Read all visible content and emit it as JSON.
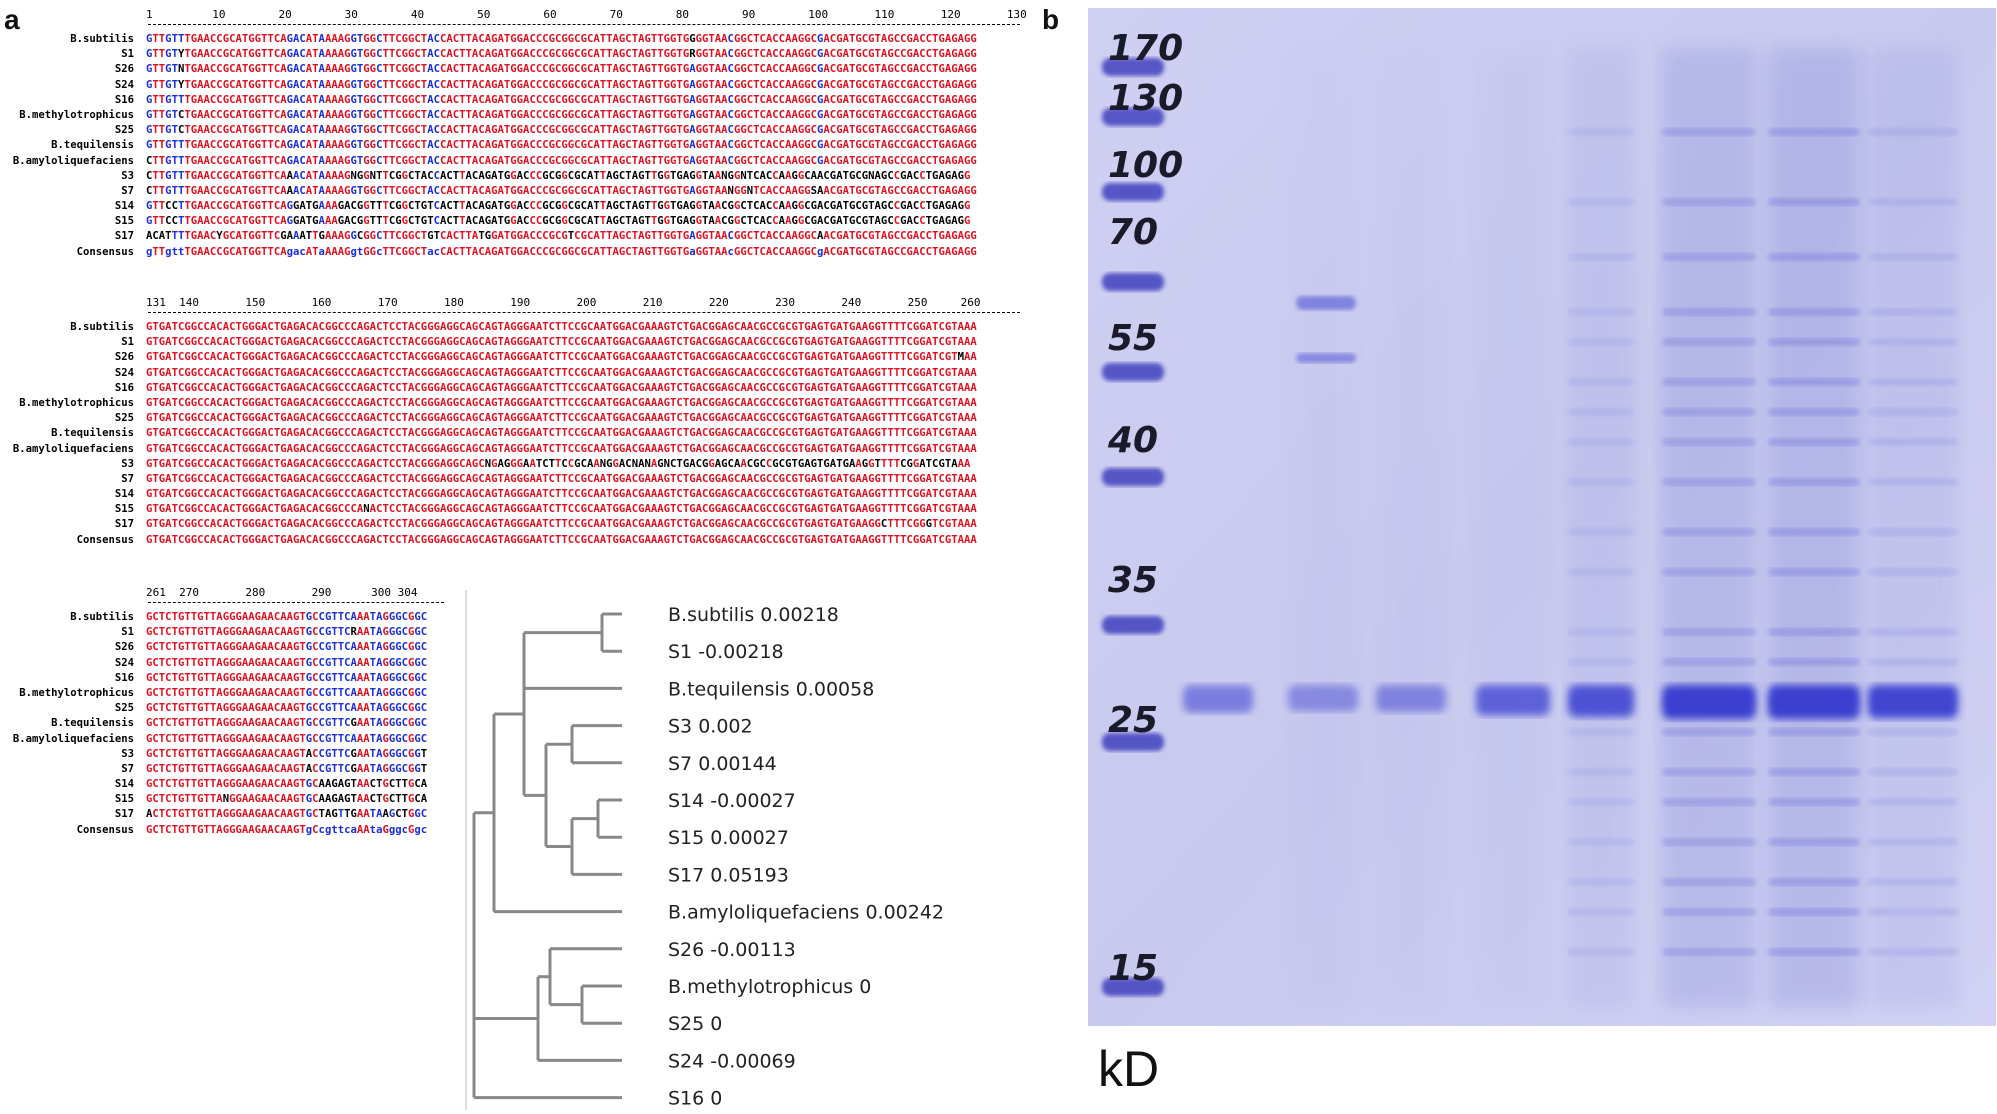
{
  "panel_a": {
    "letter": "a",
    "blocks": [
      {
        "ruler": "1         10        20        30        40        50        60        70        80        90        100       110       120       130",
        "names": [
          "B.subtilis",
          "S1",
          "S26",
          "S24",
          "S16",
          "B.methylotrophicus",
          "S25",
          "B.tequilensis",
          "B.amyloliquefaciens",
          "S3",
          "S7",
          "S14",
          "S15",
          "S17",
          "Consensus"
        ],
        "rows": [
          "GTTGTTTGAACCGCATGGTTCAGACATAAAAGGTGGCTTCGGCTACCACTTACAGATGGACCCGCGGCGCATTAGCTAGTTGGTGGGGTAACGGCTCACCAAGGCGACGATGCGTAGCCGACCTGAGAGG",
          "GTTGTYTGAACCGCATGGTTCAGACATAAAAGGTGGCTTCGGCTACCACTTACAGATGGACCCGCGGCGCATTAGCTAGTTGGTGRGGTAACGGCTCACCAAGGCGACGATGCGTAGCCGACCTGAGAGG",
          "GTTGTNTGAACCGCATGGTTCAGACATAAAAGGTGGCTTCGGCTACCACTTACAGATGGACCCGCGGCGCATTAGCTAGTTGGTGAGGTAACGGCTCACCAAGGCGACGATGCGTAGCCGACCTGAGAGG",
          "GTTGTYTGAACCGCATGGTTCAGACATAAAAGGTGGCTTCGGCTACCACTTACAGATGGACCCGCGGCGCATTAGCTAGTTGGTGAGGTAACGGCTCACCAAGGCGACGATGCGTAGCCGACCTGAGAGG",
          "GTTGTTTGAACCGCATGGTTCAGACATAAAAGGTGGCTTCGGCTACCACTTACAGATGGACCCGCGGCGCATTAGCTAGTTGGTGAGGTAACGGCTCACCAAGGCGACGATGCGTAGCCGACCTGAGAGG",
          "GTTGTCTGAACCGCATGGTTCAGACATAAAAGGTGGCTTCGGCTACCACTTACAGATGGACCCGCGGCGCATTAGCTAGTTGGTGAGGTAACGGCTCACCAAGGCGACGATGCGTAGCCGACCTGAGAGG",
          "GTTGTCTGAACCGCATGGTTCAGACATAAAAGGTGGCTTCGGCTACCACTTACAGATGGACCCGCGGCGCATTAGCTAGTTGGTGAGGTAACGGCTCACCAAGGCGACGATGCGTAGCCGACCTGAGAGG",
          "GTTGTTTGAACCGCATGGTTCAGACATAAAAGGTGGCTTCGGCTACCACTTACAGATGGACCCGCGGCGCATTAGCTAGTTGGTGAGGTAACGGCTCACCAAGGCGACGATGCGTAGCCGACCTGAGAGG",
          "CTTGTTTGAACCGCATGGTTCAGACATAAAAGGTGGCTTCGGCTACCACTTACAGATGGACCCGCGGCGCATTAGCTAGTTGGTGAGGTAACGGCTCACCAAGGCGACGATGCGTAGCCGACCTGAGAGG",
          "CTTGTTTGAACCGCATGGTTCAAACATAAAAGNGGNTTCGGCTACCACTTACAGATGGACCCGCGGCGCATTAGCTAGTTGGTGAGGTAANGGNTCACCAAGGCAACGATGCGNAGCCGACCTGAGAGG",
          "CTTGTTTGAACCGCATGGTTCAAACATAAAAGGTGGCTTCGGCTACCACTTACAGATGGACCCGCGGCGCATTAGCTAGTTGGTGAGGTAANGGNTCACCAAGGSAACGATGCGTAGCCGACCTGAGAGG",
          "GTTCCTTGAACCGCATGGTTCAGGATGAAAGACGGTTTCGGCTGTCACTTACAGATGGACCCGCGGCGCATTAGCTAGTTGGTGAGGTAACGGCTCACCAAGGCGACGATGCGTAGCCGACCTGAGAGG",
          "GTTCCTTGAACCGCATGGTTCAGGATGAAAGACGGTTTCGGCTGTCACTTACAGATGGACCCGCGGCGCATTAGCTAGTTGGTGAGGTAACGGCTCACCAAGGCGACGATGCGTAGCCGACCTGAGAGG",
          "ACATTTTGAACYGCATGGTTCGAAATTGAAAGGCGGCTTCGGCTGTCACTTATGGATGGACCCGCGTCGCATTAGCTAGTTGGTGAGGTAACGGCTCACCAAGGCAACGATGCGTAGCCGACCTGAGAGG",
          "gTTgttTGAACCGCATGGTTCAgacATaAAAGgtGGcTTCGGCTacCACTTACAGATGGACCCGCGGCGCATTAGCTAGTTGGTGaGGTAAcGGCTCACCAAGGCgACGATGCGTAGCCGACCTGAGAGG"
        ]
      },
      {
        "ruler": "131  140       150       160       170       180       190       200       210       220       230       240       250     260",
        "names": [
          "B.subtilis",
          "S1",
          "S26",
          "S24",
          "S16",
          "B.methylotrophicus",
          "S25",
          "B.tequilensis",
          "B.amyloliquefaciens",
          "S3",
          "S7",
          "S14",
          "S15",
          "S17",
          "Consensus"
        ],
        "rows": [
          "GTGATCGGCCACACTGGGACTGAGACACGGCCCAGACTCCTACGGGAGGCAGCAGTAGGGAATCTTCCGCAATGGACGAAAGTCTGACGGAGCAACGCCGCGTGAGTGATGAAGGTTTTCGGATCGTAAA",
          "GTGATCGGCCACACTGGGACTGAGACACGGCCCAGACTCCTACGGGAGGCAGCAGTAGGGAATCTTCCGCAATGGACGAAAGTCTGACGGAGCAACGCCGCGTGAGTGATGAAGGTTTTCGGATCGTAAA",
          "GTGATCGGCCACACTGGGACTGAGACACGGCCCAGACTCCTACGGGAGGCAGCAGTAGGGAATCTTCCGCAATGGACGAAAGTCTGACGGAGCAACGCCGCGTGAGTGATGAAGGTTTTCGGATCGTMAA",
          "GTGATCGGCCACACTGGGACTGAGACACGGCCCAGACTCCTACGGGAGGCAGCAGTAGGGAATCTTCCGCAATGGACGAAAGTCTGACGGAGCAACGCCGCGTGAGTGATGAAGGTTTTCGGATCGTAAA",
          "GTGATCGGCCACACTGGGACTGAGACACGGCCCAGACTCCTACGGGAGGCAGCAGTAGGGAATCTTCCGCAATGGACGAAAGTCTGACGGAGCAACGCCGCGTGAGTGATGAAGGTTTTCGGATCGTAAA",
          "GTGATCGGCCACACTGGGACTGAGACACGGCCCAGACTCCTACGGGAGGCAGCAGTAGGGAATCTTCCGCAATGGACGAAAGTCTGACGGAGCAACGCCGCGTGAGTGATGAAGGTTTTCGGATCGTAAA",
          "GTGATCGGCCACACTGGGACTGAGACACGGCCCAGACTCCTACGGGAGGCAGCAGTAGGGAATCTTCCGCAATGGACGAAAGTCTGACGGAGCAACGCCGCGTGAGTGATGAAGGTTTTCGGATCGTAAA",
          "GTGATCGGCCACACTGGGACTGAGACACGGCCCAGACTCCTACGGGAGGCAGCAGTAGGGAATCTTCCGCAATGGACGAAAGTCTGACGGAGCAACGCCGCGTGAGTGATGAAGGTTTTCGGATCGTAAA",
          "GTGATCGGCCACACTGGGACTGAGACACGGCCCAGACTCCTACGGGAGGCAGCAGTAGGGAATCTTCCGCAATGGACGAAAGTCTGACGGAGCAACGCCGCGTGAGTGATGAAGGTTTTCGGATCGTAAA",
          "GTGATCGGCCACACTGGGACTGAGACACGGCCCAGACTCCTACGGGAGGCAGCNGAGGGAATCTTCCGCAANGGACNANAGNCTGACGGAGCAACGCCGCGTGAGTGATGAAGGTTTTCGGATCGTAAA",
          "GTGATCGGCCACACTGGGACTGAGACACGGCCCAGACTCCTACGGGAGGCAGCAGTAGGGAATCTTCCGCAATGGACGAAAGTCTGACGGAGCAACGCCGCGTGAGTGATGAAGGTTTTCGGATCGTAAA",
          "GTGATCGGCCACACTGGGACTGAGACACGGCCCAGACTCCTACGGGAGGCAGCAGTAGGGAATCTTCCGCAATGGACGAAAGTCTGACGGAGCAACGCCGCGTGAGTGATGAAGGTTTTCGGATCGTAAA",
          "GTGATCGGCCACACTGGGACTGAGACACGGCCCANACTCCTACGGGAGGCAGCAGTAGGGAATCTTCCGCAATGGACGAAAGTCTGACGGAGCAACGCCGCGTGAGTGATGAAGGTTTTCGGATCGTAAA",
          "GTGATCGGCCACACTGGGACTGAGACACGGCCCAGACTCCTACGGGAGGCAGCAGTAGGGAATCTTCCGCAATGGACGAAAGTCTGACGGAGCAACGCCGCGTGAGTGATGAAGGCTTTCGGGTCGTAAA",
          "GTGATCGGCCACACTGGGACTGAGACACGGCCCAGACTCCTACGGGAGGCAGCAGTAGGGAATCTTCCGCAATGGACGAAAGTCTGACGGAGCAACGCCGCGTGAGTGATGAAGGTTTTCGGATCGTAAA"
        ]
      },
      {
        "ruler": "261  270       280       290      300 304",
        "names": [
          "B.subtilis",
          "S1",
          "S26",
          "S24",
          "S16",
          "B.methylotrophicus",
          "S25",
          "B.tequilensis",
          "B.amyloliquefaciens",
          "S3",
          "S7",
          "S14",
          "S15",
          "S17",
          "Consensus"
        ],
        "rows": [
          "GCTCTGTTGTTAGGGAAGAACAAGTGCCGTTCAAATAGGGCGGC",
          "GCTCTGTTGTTAGGGAAGAACAAGTGCCGTTCRAATAGGGCGGC",
          "GCTCTGTTGTTAGGGAAGAACAAGTGCCGTTCAAATAGGGCGGC",
          "GCTCTGTTGTTAGGGAAGAACAAGTGCCGTTCAAATAGGGCGGC",
          "GCTCTGTTGTTAGGGAAGAACAAGTGCCGTTCAAATAGGGCGGC",
          "GCTCTGTTGTTAGGGAAGAACAAGTGCCGTTCAAATAGGGCGGC",
          "GCTCTGTTGTTAGGGAAGAACAAGTGCCGTTCAAATAGGGCGGC",
          "GCTCTGTTGTTAGGGAAGAACAAGTGCCGTTCGAATAGGGCGGC",
          "GCTCTGTTGTTAGGGAAGAACAAGTGCCGTTCAAATAGGGCGGC",
          "GCTCTGTTGTTAGGGAAGAACAAGTACCGTTCGAATAGGGCGGT",
          "GCTCTGTTGTTAGGGAAGAACAAGTACCGTTCGAATAGGGCGGT",
          "GCTCTGTTGTTAGGGAAGAACAAGTGCAAGAGTAACTGCTTGCA",
          "GCTCTGTTGTTANGGAAGAACAAGTGCAAGAGTAACTGCTTGCA",
          "ACTCTGTTGTTAGGGAAGAACAAGTGCTAGTTGAATAAGCTGGC",
          "GCTCTGTTGTTAGGGAAGAACAAGTgCcgttcaAAtaGggcGgc"
        ]
      }
    ],
    "tree": {
      "leaves": [
        "B.subtilis 0.00218",
        "S1 -0.00218",
        "B.tequilensis 0.00058",
        "S3 0.002",
        "S7 0.00144",
        "S14 -0.00027",
        "S15 0.00027",
        "S17 0.05193",
        "B.amyloliquefaciens 0.00242",
        "S26 -0.00113",
        "B.methylotrophicus 0",
        "S25 0",
        "S24 -0.00069",
        "S16 0"
      ]
    }
  },
  "panel_b": {
    "letter": "b",
    "unit_label": "kD",
    "markers": [
      "170",
      "130",
      "100",
      "70",
      "55",
      "40",
      "35",
      "25",
      "15"
    ],
    "colors": {
      "gel_bg": "#c9cbef",
      "band": "#3b3fd0",
      "marker_band": "#2e2fb8"
    }
  }
}
